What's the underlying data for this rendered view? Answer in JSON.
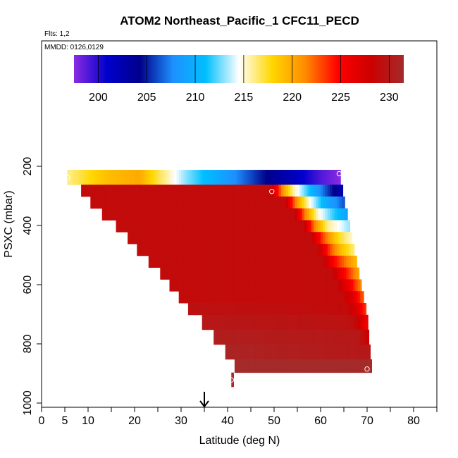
{
  "chart_data": {
    "type": "heatmap",
    "title": "ATOM2 Northeast_Pacific_1 CFC11_PECD",
    "subtitle_flights": "Flts: 1,2",
    "subtitle_dates": "MMDD: 0126,0129",
    "xlabel": "Latitude (deg N)",
    "ylabel": "PSXC (mbar)",
    "xlim": [
      0,
      85
    ],
    "ylim": [
      1000,
      0
    ],
    "x_ticks": [
      0,
      5,
      10,
      20,
      30,
      40,
      50,
      60,
      70,
      80
    ],
    "x_minor_ticks": [
      15,
      25,
      35,
      45,
      55,
      65,
      75,
      85
    ],
    "y_ticks": [
      200,
      400,
      600,
      800,
      1000
    ],
    "colorbar": {
      "min": 197.5,
      "max": 231.5,
      "ticks": [
        200,
        205,
        210,
        215,
        220,
        225,
        230
      ],
      "colors": [
        "#8a2be2",
        "#0000cd",
        "#00008b",
        "#1e90ff",
        "#00bfff",
        "#ffffff",
        "#ffd700",
        "#ff8c00",
        "#ff0000",
        "#cc0000",
        "#a52a2a"
      ]
    },
    "bands": [
      {
        "p_top": 212,
        "p_bot": 262,
        "lat_start": 5.5,
        "lat_end": 64.3,
        "profile": [
          [
            5.5,
            216
          ],
          [
            14,
            219
          ],
          [
            21,
            220
          ],
          [
            25,
            217
          ],
          [
            31,
            213
          ],
          [
            37,
            210
          ],
          [
            43,
            207
          ],
          [
            49,
            204
          ],
          [
            55,
            201.5
          ],
          [
            60,
            199
          ],
          [
            64.3,
            197.5
          ]
        ]
      },
      {
        "p_top": 262,
        "p_bot": 302,
        "lat_start": 8.5,
        "lat_end": 64.8,
        "profile": [
          [
            8.5,
            229
          ],
          [
            49.5,
            229
          ],
          [
            51.5,
            222
          ],
          [
            54,
            216
          ],
          [
            57,
            212
          ],
          [
            60.5,
            207
          ],
          [
            64.8,
            202
          ]
        ]
      },
      {
        "p_top": 302,
        "p_bot": 342,
        "lat_start": 10.5,
        "lat_end": 65.2,
        "profile": [
          [
            10.5,
            229
          ],
          [
            52.5,
            229
          ],
          [
            54.5,
            222
          ],
          [
            57.5,
            215
          ],
          [
            61,
            210
          ],
          [
            65.2,
            206
          ]
        ]
      },
      {
        "p_top": 342,
        "p_bot": 382,
        "lat_start": 13.0,
        "lat_end": 65.8,
        "profile": [
          [
            13,
            229
          ],
          [
            54.5,
            229
          ],
          [
            56.5,
            222
          ],
          [
            59.5,
            215
          ],
          [
            62.5,
            212
          ],
          [
            65.8,
            209
          ]
        ]
      },
      {
        "p_top": 382,
        "p_bot": 422,
        "lat_start": 16.0,
        "lat_end": 66.3,
        "profile": [
          [
            16,
            229
          ],
          [
            56.5,
            229
          ],
          [
            58.5,
            222
          ],
          [
            61.5,
            216
          ],
          [
            66.3,
            213
          ]
        ]
      },
      {
        "p_top": 422,
        "p_bot": 462,
        "lat_start": 18.5,
        "lat_end": 66.8,
        "profile": [
          [
            18.5,
            229
          ],
          [
            58,
            229
          ],
          [
            60.5,
            223
          ],
          [
            63.5,
            218
          ],
          [
            66.8,
            215
          ]
        ]
      },
      {
        "p_top": 462,
        "p_bot": 502,
        "lat_start": 20.5,
        "lat_end": 67.3,
        "profile": [
          [
            20.5,
            229
          ],
          [
            59.5,
            229
          ],
          [
            62,
            223
          ],
          [
            64.5,
            219
          ],
          [
            67.3,
            216
          ]
        ]
      },
      {
        "p_top": 502,
        "p_bot": 542,
        "lat_start": 23.0,
        "lat_end": 67.8,
        "profile": [
          [
            23,
            229
          ],
          [
            60.5,
            229
          ],
          [
            63.5,
            224
          ],
          [
            67.8,
            219
          ]
        ]
      },
      {
        "p_top": 542,
        "p_bot": 582,
        "lat_start": 25.5,
        "lat_end": 68.3,
        "profile": [
          [
            25.5,
            229
          ],
          [
            62.5,
            229
          ],
          [
            65,
            225
          ],
          [
            68.3,
            220
          ]
        ]
      },
      {
        "p_top": 582,
        "p_bot": 622,
        "lat_start": 27.5,
        "lat_end": 68.8,
        "profile": [
          [
            27.5,
            229
          ],
          [
            63.5,
            229
          ],
          [
            66,
            226
          ],
          [
            68.8,
            221
          ]
        ]
      },
      {
        "p_top": 622,
        "p_bot": 662,
        "lat_start": 29.5,
        "lat_end": 69.3,
        "profile": [
          [
            29.5,
            229
          ],
          [
            64.5,
            229
          ],
          [
            67,
            227
          ],
          [
            69.3,
            222
          ]
        ]
      },
      {
        "p_top": 662,
        "p_bot": 702,
        "lat_start": 31.5,
        "lat_end": 69.8,
        "profile": [
          [
            31.5,
            229.5
          ],
          [
            65.5,
            229
          ],
          [
            68,
            227
          ],
          [
            69.8,
            223
          ]
        ]
      },
      {
        "p_top": 702,
        "p_bot": 752,
        "lat_start": 34.5,
        "lat_end": 70.2,
        "profile": [
          [
            34.5,
            230
          ],
          [
            66.5,
            229.5
          ],
          [
            68.5,
            228
          ],
          [
            70.2,
            225
          ]
        ]
      },
      {
        "p_top": 752,
        "p_bot": 802,
        "lat_start": 37.0,
        "lat_end": 70.4,
        "profile": [
          [
            37,
            230.5
          ],
          [
            68,
            230
          ],
          [
            70.4,
            228
          ]
        ]
      },
      {
        "p_top": 802,
        "p_bot": 852,
        "lat_start": 39.5,
        "lat_end": 70.7,
        "profile": [
          [
            39.5,
            231
          ],
          [
            70.7,
            230
          ]
        ]
      },
      {
        "p_top": 852,
        "p_bot": 897,
        "lat_start": 41.5,
        "lat_end": 71.0,
        "profile": [
          [
            41.5,
            231.5
          ],
          [
            71,
            231.5
          ]
        ]
      },
      {
        "p_top": 897,
        "p_bot": 945,
        "lat_start": 40.8,
        "lat_end": 41.3,
        "profile": [
          [
            40.8,
            231.5
          ],
          [
            41.3,
            231.5
          ]
        ]
      }
    ],
    "circle_markers": [
      {
        "lat": 5.6,
        "p": 238
      },
      {
        "lat": 64.0,
        "p": 225
      },
      {
        "lat": 49.5,
        "p": 285
      },
      {
        "lat": 70.0,
        "p": 885
      },
      {
        "lat": 40.8,
        "p": 922
      }
    ],
    "arrow_marker": {
      "lat": 35.0
    }
  }
}
